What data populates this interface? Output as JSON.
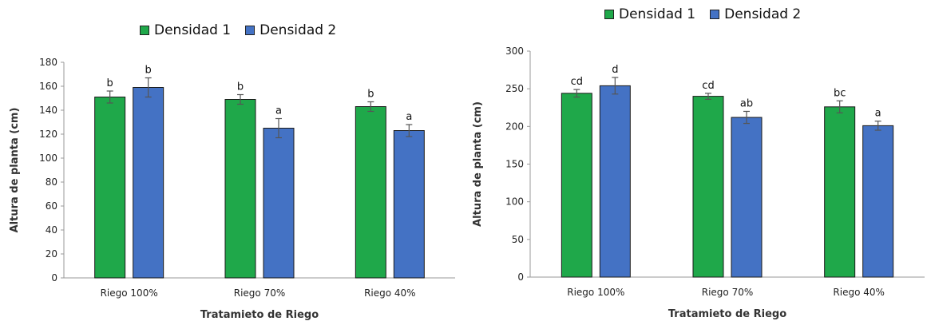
{
  "colors": {
    "densidad1": "#1fa84a",
    "densidad2": "#4472c4",
    "axis": "#9a9a9a",
    "error": "#555555"
  },
  "chart_data": [
    {
      "type": "bar",
      "categories": [
        "Riego 100%",
        "Riego 70%",
        "Riego 40%"
      ],
      "series": [
        {
          "name": "Densidad 1",
          "values": [
            151,
            149,
            143
          ],
          "errors": [
            5,
            4,
            4
          ],
          "labels": [
            "b",
            "b",
            "b"
          ]
        },
        {
          "name": "Densidad 2",
          "values": [
            159,
            125,
            123
          ],
          "errors": [
            8,
            8,
            5
          ],
          "labels": [
            "b",
            "a",
            "a"
          ]
        }
      ],
      "xlabel": "Tratamieto de Riego",
      "ylabel": "Altura de planta (cm)",
      "ylim": [
        0,
        180
      ],
      "yticks": [
        0,
        20,
        40,
        60,
        80,
        100,
        120,
        140,
        160,
        180
      ],
      "grid": false,
      "legend": "top"
    },
    {
      "type": "bar",
      "categories": [
        "Riego 100%",
        "Riego 70%",
        "Riego 40%"
      ],
      "series": [
        {
          "name": "Densidad 1",
          "values": [
            244,
            240,
            226
          ],
          "errors": [
            5,
            4,
            8
          ],
          "labels": [
            "cd",
            "cd",
            "bc"
          ]
        },
        {
          "name": "Densidad 2",
          "values": [
            254,
            212,
            201
          ],
          "errors": [
            11,
            8,
            6
          ],
          "labels": [
            "d",
            "ab",
            "a"
          ]
        }
      ],
      "xlabel": "Tratamieto de Riego",
      "ylabel": "Altura de planta (cm)",
      "ylim": [
        0,
        300
      ],
      "yticks": [
        0,
        50,
        100,
        150,
        200,
        250,
        300
      ],
      "grid": false,
      "legend": "top"
    }
  ]
}
